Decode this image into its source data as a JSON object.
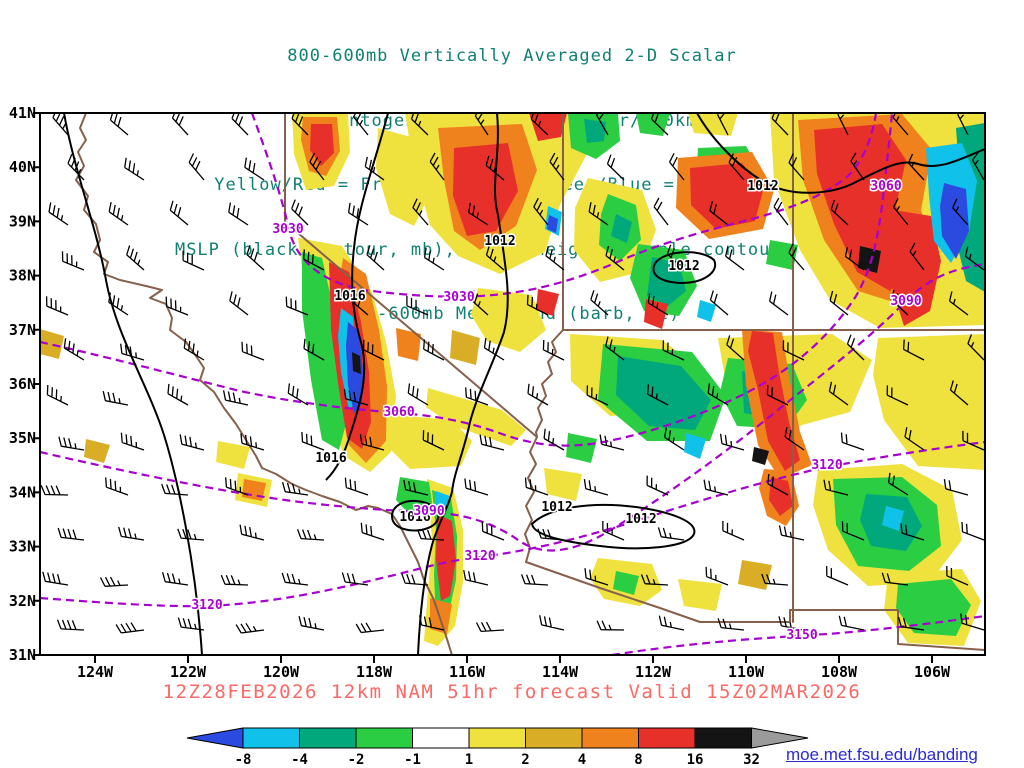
{
  "title_lines": [
    "800-600mb Vertically Averaged 2-D Scalar",
    "Frontogenesis (shaded, K/6hr/100km)",
    "Yellow/Red = Frontogenesis;  Green/Blue = Frontolysis",
    "MSLP (black contour, mb), 700mb height (purple contour, m) &",
    "800-600mb Mean Wind (barb, kt)"
  ],
  "caption": "12Z28FEB2026 12km NAM 51hr forecast Valid 15Z02MAR2026",
  "footer": {
    "link_text": "moe.met.fsu.edu/banding"
  },
  "palette": {
    "title_color": "#108073",
    "caption_color": "#FB6A66",
    "link_color": "#2929D6",
    "state_border_color": "#87604B",
    "mslp_contour_color": "#000000",
    "height_contour_color": "#A800D0"
  },
  "chart_data": {
    "type": "heatmap",
    "field": "800-600mb vertically averaged 2-D scalar frontogenesis",
    "shading_units": "K/6hr/100km",
    "shading_legend": {
      "yellow_red": "Frontogenesis",
      "green_blue": "Frontolysis"
    },
    "model": "12km NAM",
    "init_time": "12Z28FEB2026",
    "forecast_hour": "51hr",
    "valid_time": "15Z02MAR2026",
    "x_axis": {
      "ticks": [
        "124W",
        "122W",
        "120W",
        "118W",
        "116W",
        "114W",
        "112W",
        "110W",
        "108W",
        "106W"
      ]
    },
    "y_axis": {
      "ticks": [
        "41N",
        "40N",
        "39N",
        "38N",
        "37N",
        "36N",
        "35N",
        "34N",
        "33N",
        "32N",
        "31N"
      ]
    },
    "colorbar": {
      "levels": [
        "-8",
        "-4",
        "-2",
        "-1",
        "1",
        "2",
        "4",
        "8",
        "16",
        "32"
      ],
      "colors": [
        "#2B4BE0",
        "#10C2EA",
        "#00A87C",
        "#2BCE43",
        "#FFFFFF",
        "#EFE13E",
        "#D9AE26",
        "#F0821E",
        "#E8302A",
        "#141414",
        "#9B9B9B"
      ]
    },
    "contours": {
      "mslp": {
        "units": "mb",
        "color": "black",
        "labeled_values": [
          1012,
          1016
        ]
      },
      "height_700mb": {
        "units": "m",
        "color": "purple",
        "style": "dashed",
        "labeled_values": [
          3030,
          3060,
          3090,
          3120,
          3150
        ]
      }
    },
    "wind": {
      "style": "barbs",
      "units": "kt",
      "layer": "800-600mb mean wind"
    },
    "annotations": {
      "mslp_labels": [
        "1012",
        "1016",
        "1016",
        "1016",
        "1012",
        "1012",
        "1012",
        "1012"
      ],
      "hgt_labels": [
        "3030",
        "3030",
        "3060",
        "3060",
        "3090",
        "3090",
        "3120",
        "3120",
        "3120",
        "3150"
      ]
    }
  }
}
